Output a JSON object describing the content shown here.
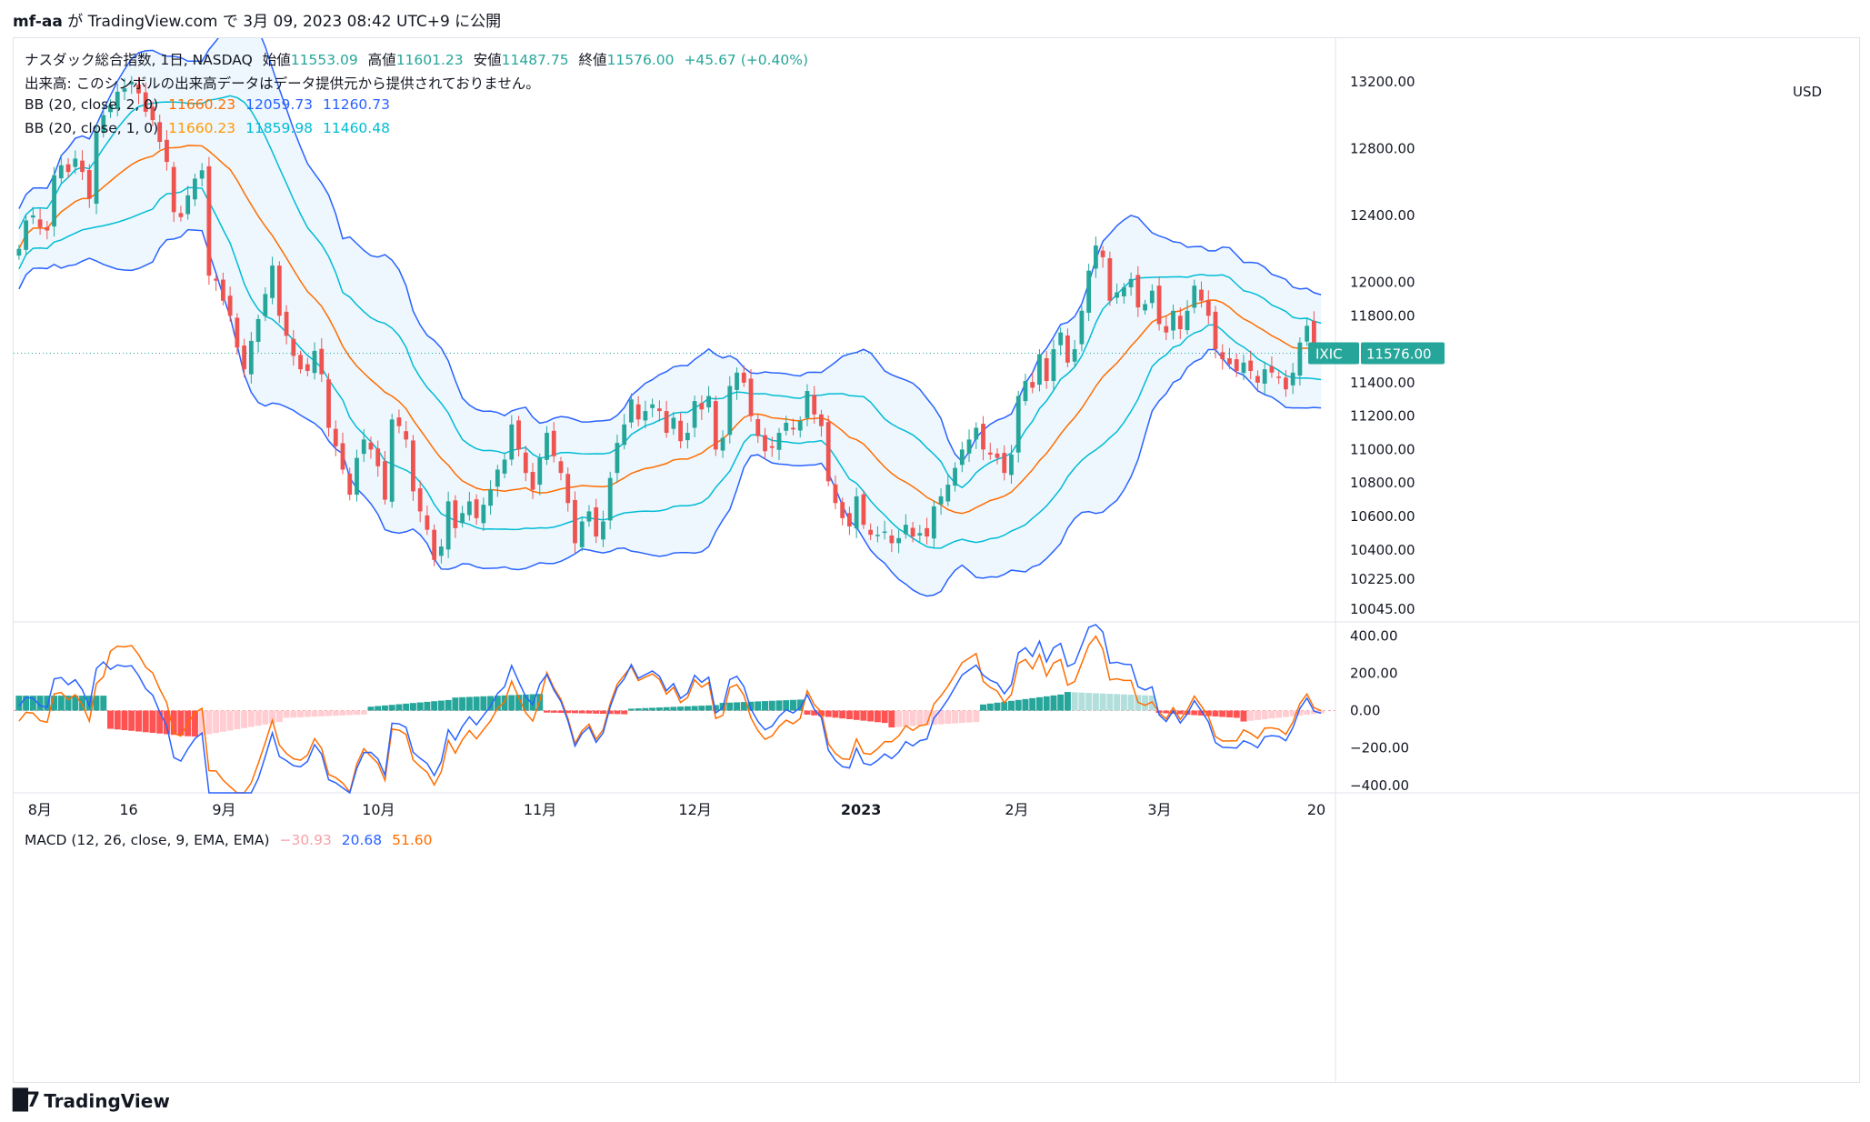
{
  "header": {
    "user": "mf-aa",
    "text": " が TradingView.com で 3月 09, 2023 08:42 UTC+9 に公開"
  },
  "legend": {
    "symbol": "ナスダック総合指数, 1日, NASDAQ",
    "open_label": "始値",
    "open": "11553.09",
    "high_label": "高値",
    "high": "11601.23",
    "low_label": "安値",
    "low": "11487.75",
    "close_label": "終値",
    "close": "11576.00",
    "change": "+45.67 (+0.40%)",
    "volume_note": "出来高: このシンボルの出来高データはデータ提供元から提供されておりません。",
    "bb1_label": "BB (20, close, 2, 0)",
    "bb1_values": [
      "11660.23",
      "12059.73",
      "11260.73"
    ],
    "bb2_label": "BB (20, close, 1, 0)",
    "bb2_values": [
      "11660.23",
      "11859.98",
      "11460.48"
    ],
    "macd_label": "MACD (12, 26, close, 9, EMA, EMA)",
    "macd_values": [
      "−30.93",
      "20.68",
      "51.60"
    ]
  },
  "price_axis": {
    "currency": "USD",
    "ticks": [
      "13200.00",
      "12800.00",
      "12400.00",
      "12000.00",
      "11800.00",
      "11400.00",
      "11200.00",
      "11000.00",
      "10800.00",
      "10600.00",
      "10400.00",
      "10225.00",
      "10045.00"
    ],
    "last_symbol": "IXIC",
    "last_price": "11576.00"
  },
  "macd_axis": {
    "ticks": [
      "400.00",
      "200.00",
      "0.00",
      "−200.00",
      "−400.00"
    ]
  },
  "time_axis": {
    "labels": [
      "8月",
      "16",
      "9月",
      "10月",
      "11月",
      "12月",
      "2023",
      "2月",
      "3月",
      "20"
    ]
  },
  "footer": {
    "logo_text": "TradingView"
  },
  "colors": {
    "up": "#26a69a",
    "down": "#ef5350",
    "bb_outer": "#2962ff",
    "bb_inner": "#00bcd4",
    "basis": "#ff6d00",
    "macd_line": "#2962ff",
    "signal_line": "#ff6d00",
    "hist_up_strong": "#26a69a",
    "hist_up_weak": "#b2dfdb",
    "hist_down_strong": "#ff5252",
    "hist_down_weak": "#ffcdd2",
    "label_bg": "#26a69a"
  },
  "chart_data": {
    "type": "candlestick",
    "title": "ナスダック総合指数, 1日, NASDAQ",
    "price_range": [
      9980,
      13460
    ],
    "macd_range": [
      -440,
      460
    ],
    "x_labels": [
      "8月",
      "16",
      "9月",
      "10月",
      "11月",
      "12月",
      "2023",
      "2月",
      "3月",
      "20"
    ],
    "closes": [
      12200,
      12370,
      12400,
      12330,
      12310,
      12640,
      12700,
      12660,
      12740,
      12660,
      12500,
      12900,
      13000,
      13060,
      13140,
      13160,
      13200,
      13130,
      13020,
      12970,
      12840,
      12720,
      12420,
      12390,
      12520,
      12620,
      12670,
      12040,
      12010,
      11890,
      11800,
      11610,
      11480,
      11650,
      11780,
      11930,
      12100,
      11800,
      11680,
      11560,
      11480,
      11470,
      11590,
      11450,
      11130,
      11020,
      10880,
      10730,
      10950,
      11060,
      11000,
      10900,
      10700,
      11180,
      11140,
      11060,
      10750,
      10630,
      10520,
      10340,
      10420,
      10690,
      10530,
      10620,
      10690,
      10590,
      10670,
      10760,
      10880,
      10940,
      11150,
      11000,
      10860,
      10760,
      10950,
      11100,
      10960,
      10860,
      10680,
      10440,
      10570,
      10630,
      10480,
      10570,
      10830,
      11040,
      11150,
      11300,
      11180,
      11230,
      11270,
      11230,
      11100,
      11190,
      11050,
      11100,
      11290,
      11240,
      11320,
      11000,
      11070,
      11380,
      11460,
      11400,
      11200,
      11080,
      10990,
      11010,
      11100,
      11160,
      11120,
      11170,
      11350,
      11210,
      11140,
      10810,
      10680,
      10590,
      10540,
      10720,
      10550,
      10490,
      10490,
      10510,
      10440,
      10470,
      10550,
      10480,
      10500,
      10480,
      10660,
      10720,
      10790,
      10890,
      11000,
      11060,
      11130,
      11000,
      10970,
      10950,
      10860,
      10970,
      11320,
      11410,
      11370,
      11570,
      11410,
      11600,
      11700,
      11520,
      11600,
      11830,
      12070,
      12220,
      12150,
      11890,
      11940,
      11970,
      12020,
      11850,
      11870,
      11950,
      11750,
      11700,
      11830,
      11720,
      11830,
      11980,
      11890,
      11800,
      11600,
      11540,
      11510,
      11470,
      11520,
      11470,
      11400,
      11480,
      11460,
      11430,
      11360,
      11460,
      11640,
      11740,
      11600,
      11570
    ],
    "macd_hist_ranges": [
      [
        80,
        80
      ],
      [
        -95,
        -140
      ],
      [
        -140,
        -60
      ],
      [
        -40,
        -20
      ],
      [
        20,
        60
      ],
      [
        70,
        90
      ],
      [
        -10,
        -20
      ],
      [
        10,
        30
      ],
      [
        40,
        60
      ],
      [
        -20,
        -70
      ],
      [
        -90,
        -60
      ],
      [
        30,
        90
      ],
      [
        100,
        80
      ],
      [
        -10,
        -40
      ],
      [
        -60,
        -10
      ]
    ]
  }
}
